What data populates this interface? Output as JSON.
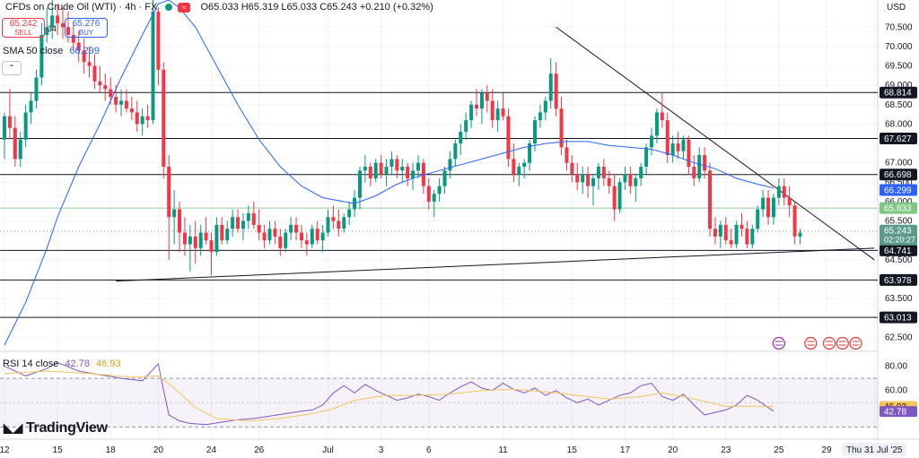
{
  "header": {
    "symbol": "CFDs on Crude Oil (WTI) · 4h · FX",
    "ohlc": "O65.033  H65.319  L65.033  C65.243  +0.210 (+0.32%)"
  },
  "trade": {
    "sell_price": "65.242",
    "sell_label": "SELL",
    "spread": "34",
    "buy_price": "65.276",
    "buy_label": "BUY"
  },
  "indicators": {
    "sma_label": "SMA 50 close",
    "sma_value": "66.299",
    "rsi_label": "RSI 14 close",
    "rsi_value": "42.78",
    "rsi_ma_value": "46.93"
  },
  "branding": {
    "logo": "TradingView"
  },
  "axis": {
    "currency": "USD",
    "y_ticks": [
      "70.500",
      "70.000",
      "69.500",
      "69.000",
      "68.500",
      "68.000",
      "67.000",
      "66.500",
      "66.000",
      "65.500",
      "64.500",
      "63.500",
      "62.500"
    ],
    "y_tick_values": [
      70.5,
      70.0,
      69.5,
      69.0,
      68.5,
      68.0,
      67.0,
      66.5,
      66.0,
      65.5,
      64.5,
      63.5,
      62.5
    ],
    "rsi_ticks": [
      "80.00",
      "60.00"
    ],
    "rsi_tick_values": [
      80,
      60
    ],
    "x_ticks": [
      "12",
      "15",
      "18",
      "20",
      "24",
      "26",
      "Jul",
      "3",
      "6",
      "11",
      "15",
      "17",
      "20",
      "23",
      "25",
      "29",
      "Thu 31 Jul '25"
    ],
    "x_tick_bars": [
      0,
      10,
      20,
      29,
      39,
      48,
      61,
      71,
      80,
      94,
      107,
      117,
      126,
      136,
      146,
      155,
      164
    ],
    "last_price_time": "02:20:27"
  },
  "colors": {
    "up": "#089981",
    "down": "#f23645",
    "sma": "#2962ff",
    "rsi": "#7e57c2",
    "rsi_ma": "#f7c45c",
    "grid": "#f0f3fa"
  },
  "chart_data": {
    "type": "candlestick",
    "title": "CFDs on Crude Oil (WTI) · 4h · FX",
    "ylim": [
      62.3,
      71.2
    ],
    "ohlc": [
      [
        67.6,
        68.3,
        67.1,
        68.2
      ],
      [
        68.2,
        68.9,
        67.6,
        67.9
      ],
      [
        67.9,
        68.2,
        66.9,
        67.1
      ],
      [
        67.1,
        67.8,
        66.9,
        67.6
      ],
      [
        67.6,
        68.5,
        67.4,
        68.3
      ],
      [
        68.3,
        68.8,
        68.0,
        68.6
      ],
      [
        68.6,
        69.4,
        68.4,
        69.2
      ],
      [
        69.2,
        70.6,
        69.0,
        70.3
      ],
      [
        70.3,
        71.0,
        70.1,
        70.5
      ],
      [
        70.5,
        71.2,
        70.2,
        70.8
      ],
      [
        70.8,
        71.1,
        70.3,
        70.6
      ],
      [
        70.6,
        71.0,
        70.2,
        70.5
      ],
      [
        70.5,
        70.9,
        70.1,
        70.3
      ],
      [
        70.3,
        70.6,
        69.9,
        70.1
      ],
      [
        70.1,
        70.4,
        69.6,
        69.9
      ],
      [
        69.9,
        70.2,
        69.3,
        69.6
      ],
      [
        69.6,
        70.0,
        69.2,
        69.5
      ],
      [
        69.5,
        69.8,
        68.9,
        69.1
      ],
      [
        69.1,
        69.5,
        68.8,
        69.0
      ],
      [
        69.0,
        69.3,
        68.6,
        68.9
      ],
      [
        68.9,
        69.2,
        68.5,
        68.7
      ],
      [
        68.7,
        69.0,
        68.3,
        68.5
      ],
      [
        68.5,
        68.9,
        68.2,
        68.6
      ],
      [
        68.6,
        68.9,
        68.3,
        68.4
      ],
      [
        68.4,
        68.7,
        68.1,
        68.3
      ],
      [
        68.3,
        68.6,
        67.8,
        68.0
      ],
      [
        68.0,
        68.4,
        67.7,
        68.2
      ],
      [
        68.2,
        68.5,
        67.9,
        68.1
      ],
      [
        68.1,
        71.2,
        68.0,
        70.9
      ],
      [
        70.9,
        71.0,
        69.0,
        69.4
      ],
      [
        69.4,
        69.6,
        66.6,
        66.9
      ],
      [
        66.9,
        67.2,
        64.5,
        65.6
      ],
      [
        65.6,
        66.3,
        64.9,
        65.8
      ],
      [
        65.8,
        66.0,
        64.7,
        65.2
      ],
      [
        65.2,
        65.6,
        64.6,
        64.9
      ],
      [
        64.9,
        65.4,
        64.2,
        65.1
      ],
      [
        65.1,
        65.5,
        64.4,
        64.8
      ],
      [
        64.8,
        65.4,
        64.6,
        65.2
      ],
      [
        65.2,
        65.6,
        64.9,
        65.0
      ],
      [
        65.0,
        65.2,
        64.1,
        64.7
      ],
      [
        64.7,
        65.6,
        64.6,
        65.4
      ],
      [
        65.4,
        65.6,
        64.9,
        65.0
      ],
      [
        65.0,
        65.5,
        64.9,
        65.3
      ],
      [
        65.3,
        65.8,
        65.1,
        65.6
      ],
      [
        65.6,
        65.8,
        65.2,
        65.3
      ],
      [
        65.3,
        65.7,
        65.0,
        65.5
      ],
      [
        65.5,
        65.9,
        65.3,
        65.7
      ],
      [
        65.7,
        66.0,
        65.3,
        65.4
      ],
      [
        65.4,
        65.8,
        65.0,
        65.2
      ],
      [
        65.2,
        65.4,
        64.8,
        65.0
      ],
      [
        65.0,
        65.5,
        64.9,
        65.3
      ],
      [
        65.3,
        65.5,
        64.9,
        65.1
      ],
      [
        65.1,
        65.3,
        64.6,
        64.8
      ],
      [
        64.8,
        65.3,
        64.7,
        65.2
      ],
      [
        65.2,
        65.6,
        65.0,
        65.4
      ],
      [
        65.4,
        65.6,
        65.0,
        65.2
      ],
      [
        65.2,
        65.4,
        64.8,
        65.0
      ],
      [
        65.0,
        65.2,
        64.6,
        64.9
      ],
      [
        64.9,
        65.4,
        64.8,
        65.3
      ],
      [
        65.3,
        65.5,
        64.9,
        65.0
      ],
      [
        65.0,
        65.4,
        64.7,
        65.2
      ],
      [
        65.2,
        65.8,
        65.1,
        65.6
      ],
      [
        65.6,
        65.9,
        65.3,
        65.5
      ],
      [
        65.5,
        65.8,
        65.1,
        65.3
      ],
      [
        65.3,
        65.7,
        65.2,
        65.6
      ],
      [
        65.6,
        66.0,
        65.4,
        65.8
      ],
      [
        65.8,
        66.3,
        65.6,
        66.1
      ],
      [
        66.1,
        66.9,
        65.8,
        66.8
      ],
      [
        66.8,
        67.2,
        66.5,
        66.9
      ],
      [
        66.9,
        67.0,
        66.4,
        66.6
      ],
      [
        66.6,
        67.1,
        66.5,
        67.0
      ],
      [
        67.0,
        67.2,
        66.6,
        66.7
      ],
      [
        66.7,
        67.1,
        66.4,
        66.9
      ],
      [
        66.9,
        67.3,
        66.7,
        67.1
      ],
      [
        67.1,
        67.2,
        66.6,
        66.8
      ],
      [
        66.8,
        67.1,
        66.5,
        66.9
      ],
      [
        66.9,
        67.0,
        66.4,
        66.6
      ],
      [
        66.6,
        67.0,
        66.3,
        66.8
      ],
      [
        66.8,
        67.2,
        66.6,
        67.0
      ],
      [
        67.0,
        67.1,
        66.2,
        66.4
      ],
      [
        66.4,
        66.6,
        65.8,
        66.0
      ],
      [
        66.0,
        66.3,
        65.6,
        66.2
      ],
      [
        66.2,
        66.6,
        66.0,
        66.4
      ],
      [
        66.4,
        66.9,
        66.2,
        66.8
      ],
      [
        66.8,
        67.3,
        66.6,
        67.1
      ],
      [
        67.1,
        67.6,
        66.9,
        67.5
      ],
      [
        67.5,
        68.0,
        67.2,
        67.8
      ],
      [
        67.8,
        68.3,
        67.6,
        68.1
      ],
      [
        68.1,
        68.6,
        67.9,
        68.5
      ],
      [
        68.5,
        68.9,
        68.2,
        68.4
      ],
      [
        68.4,
        68.9,
        68.0,
        68.8
      ],
      [
        68.8,
        69.0,
        68.3,
        68.6
      ],
      [
        68.6,
        68.9,
        67.9,
        68.1
      ],
      [
        68.1,
        68.6,
        67.8,
        68.4
      ],
      [
        68.4,
        68.8,
        68.1,
        68.2
      ],
      [
        68.2,
        68.4,
        66.9,
        67.1
      ],
      [
        67.1,
        67.5,
        66.5,
        66.7
      ],
      [
        66.7,
        67.0,
        66.4,
        66.9
      ],
      [
        66.9,
        67.1,
        66.6,
        67.0
      ],
      [
        67.0,
        67.6,
        66.8,
        67.5
      ],
      [
        67.5,
        68.2,
        67.3,
        68.1
      ],
      [
        68.1,
        68.5,
        67.9,
        68.3
      ],
      [
        68.3,
        68.7,
        68.1,
        68.6
      ],
      [
        68.6,
        69.7,
        68.4,
        69.3
      ],
      [
        69.3,
        69.6,
        68.2,
        68.4
      ],
      [
        68.4,
        68.7,
        67.2,
        67.4
      ],
      [
        67.4,
        67.6,
        66.8,
        67.0
      ],
      [
        67.0,
        67.2,
        66.5,
        66.7
      ],
      [
        66.7,
        67.0,
        66.3,
        66.5
      ],
      [
        66.5,
        66.9,
        66.2,
        66.7
      ],
      [
        66.7,
        66.9,
        66.1,
        66.4
      ],
      [
        66.4,
        66.7,
        65.9,
        66.6
      ],
      [
        66.6,
        67.0,
        66.3,
        66.9
      ],
      [
        66.9,
        67.1,
        66.4,
        66.6
      ],
      [
        66.6,
        66.8,
        66.2,
        66.4
      ],
      [
        66.4,
        66.7,
        65.5,
        65.8
      ],
      [
        65.8,
        66.6,
        65.7,
        66.5
      ],
      [
        66.5,
        66.9,
        66.3,
        66.7
      ],
      [
        66.7,
        66.9,
        66.2,
        66.4
      ],
      [
        66.4,
        66.7,
        66.0,
        66.6
      ],
      [
        66.6,
        67.0,
        66.4,
        66.9
      ],
      [
        66.9,
        67.5,
        66.7,
        67.4
      ],
      [
        67.4,
        67.9,
        67.2,
        67.7
      ],
      [
        67.7,
        68.4,
        67.5,
        68.3
      ],
      [
        68.3,
        68.8,
        67.9,
        68.1
      ],
      [
        68.1,
        68.3,
        67.0,
        67.2
      ],
      [
        67.2,
        67.7,
        67.0,
        67.5
      ],
      [
        67.5,
        67.8,
        67.1,
        67.3
      ],
      [
        67.3,
        67.7,
        67.1,
        67.6
      ],
      [
        67.6,
        67.7,
        66.7,
        66.9
      ],
      [
        66.9,
        67.2,
        66.4,
        66.6
      ],
      [
        66.6,
        67.4,
        66.5,
        67.2
      ],
      [
        67.2,
        67.4,
        66.6,
        66.8
      ],
      [
        66.8,
        67.0,
        65.1,
        65.3
      ],
      [
        65.3,
        65.6,
        64.9,
        65.1
      ],
      [
        65.1,
        65.5,
        64.8,
        65.4
      ],
      [
        65.4,
        65.6,
        64.9,
        65.0
      ],
      [
        65.0,
        65.3,
        64.8,
        64.9
      ],
      [
        64.9,
        65.5,
        64.8,
        65.4
      ],
      [
        65.4,
        65.7,
        65.1,
        65.3
      ],
      [
        65.3,
        65.5,
        64.8,
        64.9
      ],
      [
        64.9,
        65.4,
        64.8,
        65.3
      ],
      [
        65.3,
        65.9,
        65.2,
        65.8
      ],
      [
        65.8,
        66.3,
        65.6,
        66.1
      ],
      [
        66.1,
        66.3,
        65.4,
        65.6
      ],
      [
        65.6,
        66.2,
        65.4,
        66.1
      ],
      [
        66.1,
        66.6,
        65.9,
        66.4
      ],
      [
        66.4,
        66.6,
        65.9,
        66.1
      ],
      [
        66.1,
        66.4,
        65.6,
        65.9
      ],
      [
        65.9,
        66.0,
        64.9,
        65.1
      ],
      [
        65.1,
        65.3,
        64.9,
        65.2
      ]
    ],
    "sma50": [
      [
        0,
        62.3
      ],
      [
        4,
        63.4
      ],
      [
        8,
        64.8
      ],
      [
        10,
        65.6
      ],
      [
        14,
        66.9
      ],
      [
        18,
        68.0
      ],
      [
        22,
        69.2
      ],
      [
        26,
        70.3
      ],
      [
        29,
        71.1
      ],
      [
        31,
        71.2
      ],
      [
        33,
        71.0
      ],
      [
        36,
        70.5
      ],
      [
        40,
        69.5
      ],
      [
        44,
        68.5
      ],
      [
        48,
        67.6
      ],
      [
        52,
        66.9
      ],
      [
        56,
        66.4
      ],
      [
        60,
        66.1
      ],
      [
        64,
        66.0
      ],
      [
        66,
        65.95
      ],
      [
        70,
        66.15
      ],
      [
        74,
        66.45
      ],
      [
        78,
        66.65
      ],
      [
        82,
        66.8
      ],
      [
        86,
        66.95
      ],
      [
        90,
        67.1
      ],
      [
        94,
        67.25
      ],
      [
        98,
        67.4
      ],
      [
        102,
        67.5
      ],
      [
        106,
        67.55
      ],
      [
        110,
        67.55
      ],
      [
        114,
        67.45
      ],
      [
        118,
        67.4
      ],
      [
        122,
        67.35
      ],
      [
        126,
        67.2
      ],
      [
        130,
        67.0
      ],
      [
        134,
        66.85
      ],
      [
        138,
        66.6
      ],
      [
        142,
        66.45
      ],
      [
        145,
        66.35
      ]
    ],
    "rsi": [
      [
        0,
        80
      ],
      [
        4,
        72
      ],
      [
        8,
        78
      ],
      [
        10,
        83
      ],
      [
        14,
        76
      ],
      [
        18,
        73
      ],
      [
        22,
        70
      ],
      [
        26,
        68
      ],
      [
        29,
        82
      ],
      [
        30,
        60
      ],
      [
        31,
        40
      ],
      [
        33,
        35
      ],
      [
        35,
        33
      ],
      [
        38,
        32
      ],
      [
        41,
        34
      ],
      [
        44,
        36
      ],
      [
        47,
        37
      ],
      [
        50,
        39
      ],
      [
        53,
        41
      ],
      [
        56,
        43
      ],
      [
        58,
        44
      ],
      [
        60,
        48
      ],
      [
        62,
        58
      ],
      [
        64,
        64
      ],
      [
        66,
        58
      ],
      [
        68,
        65
      ],
      [
        70,
        60
      ],
      [
        72,
        56
      ],
      [
        74,
        52
      ],
      [
        76,
        54
      ],
      [
        78,
        57
      ],
      [
        80,
        55
      ],
      [
        82,
        52
      ],
      [
        84,
        58
      ],
      [
        86,
        63
      ],
      [
        88,
        67
      ],
      [
        90,
        62
      ],
      [
        92,
        60
      ],
      [
        94,
        66
      ],
      [
        96,
        61
      ],
      [
        98,
        58
      ],
      [
        100,
        62
      ],
      [
        102,
        56
      ],
      [
        104,
        60
      ],
      [
        106,
        54
      ],
      [
        108,
        50
      ],
      [
        110,
        53
      ],
      [
        112,
        48
      ],
      [
        114,
        52
      ],
      [
        116,
        56
      ],
      [
        118,
        58
      ],
      [
        120,
        64
      ],
      [
        122,
        66
      ],
      [
        124,
        55
      ],
      [
        126,
        52
      ],
      [
        128,
        57
      ],
      [
        130,
        48
      ],
      [
        132,
        40
      ],
      [
        134,
        42
      ],
      [
        136,
        44
      ],
      [
        138,
        48
      ],
      [
        140,
        56
      ],
      [
        142,
        52
      ],
      [
        144,
        46
      ],
      [
        145,
        43
      ]
    ],
    "rsi_ma": [
      [
        0,
        74
      ],
      [
        8,
        76
      ],
      [
        16,
        74
      ],
      [
        24,
        71
      ],
      [
        29,
        72
      ],
      [
        32,
        62
      ],
      [
        36,
        46
      ],
      [
        40,
        37
      ],
      [
        46,
        35
      ],
      [
        52,
        37
      ],
      [
        58,
        41
      ],
      [
        62,
        45
      ],
      [
        66,
        52
      ],
      [
        72,
        56
      ],
      [
        78,
        56
      ],
      [
        84,
        57
      ],
      [
        90,
        60
      ],
      [
        96,
        61
      ],
      [
        102,
        59
      ],
      [
        108,
        56
      ],
      [
        114,
        53
      ],
      [
        120,
        55
      ],
      [
        124,
        58
      ],
      [
        128,
        55
      ],
      [
        132,
        51
      ],
      [
        136,
        47
      ],
      [
        140,
        47
      ],
      [
        145,
        47
      ]
    ],
    "levels": [
      {
        "label": "68.814",
        "value": 68.814
      },
      {
        "label": "67.627",
        "value": 67.627
      },
      {
        "label": "66.698",
        "value": 66.698
      },
      {
        "label": "64.741",
        "value": 64.741
      },
      {
        "label": "63.978",
        "value": 63.978
      },
      {
        "label": "63.013",
        "value": 63.013
      }
    ],
    "sma_line_value": 66.299,
    "green_level": {
      "label": "65.833",
      "value": 65.833
    },
    "last_price": {
      "label": "65.243",
      "value": 65.243
    },
    "trendlines": [
      {
        "from": [
          21,
          63.95
        ],
        "to": [
          164,
          64.8
        ]
      },
      {
        "from": [
          104,
          70.5
        ],
        "to": [
          164,
          64.5
        ]
      }
    ],
    "rsi_range": [
      20,
      90
    ],
    "rsi_bands": [
      70,
      30
    ]
  }
}
